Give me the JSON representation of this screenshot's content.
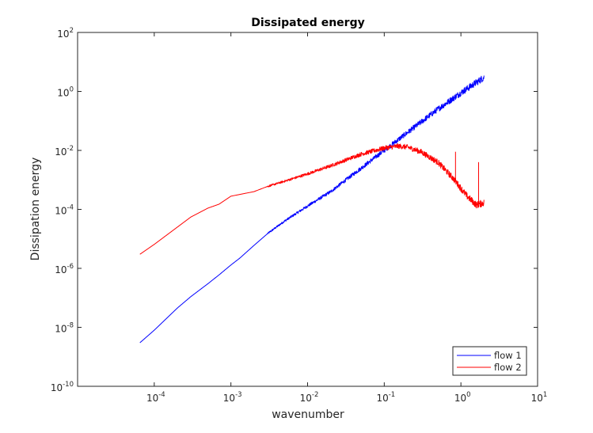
{
  "chart_data": {
    "type": "line",
    "title": "Dissipated energy",
    "xlabel": "wavenumber",
    "ylabel": "Dissipation energy",
    "xscale": "log",
    "yscale": "log",
    "xlim": [
      1e-05,
      10
    ],
    "ylim": [
      1e-10,
      100
    ],
    "x_ticks": [
      {
        "base": "10",
        "exp": "-4",
        "value": 0.0001
      },
      {
        "base": "10",
        "exp": "-3",
        "value": 0.001
      },
      {
        "base": "10",
        "exp": "-2",
        "value": 0.01
      },
      {
        "base": "10",
        "exp": "-1",
        "value": 0.1
      },
      {
        "base": "10",
        "exp": "0",
        "value": 1
      },
      {
        "base": "10",
        "exp": "1",
        "value": 10
      }
    ],
    "y_ticks": [
      {
        "base": "10",
        "exp": "-10",
        "value": 1e-10
      },
      {
        "base": "10",
        "exp": "-8",
        "value": 1e-08
      },
      {
        "base": "10",
        "exp": "-6",
        "value": 1e-06
      },
      {
        "base": "10",
        "exp": "-4",
        "value": 0.0001
      },
      {
        "base": "10",
        "exp": "-2",
        "value": 0.01
      },
      {
        "base": "10",
        "exp": "0",
        "value": 1
      },
      {
        "base": "10",
        "exp": "2",
        "value": 100
      }
    ],
    "grid": false,
    "box": true,
    "legend_position": "bottom-right",
    "series": [
      {
        "name": "flow 1",
        "color": "#0000ff",
        "noisy_from_x": 0.003,
        "points": [
          [
            6.5e-05,
            3e-09
          ],
          [
            0.0001,
            8e-09
          ],
          [
            0.0002,
            4.5e-08
          ],
          [
            0.0003,
            1.1e-07
          ],
          [
            0.0005,
            3e-07
          ],
          [
            0.0007,
            6e-07
          ],
          [
            0.001,
            1.3e-06
          ],
          [
            0.0013,
            2.2e-06
          ],
          [
            0.002,
            6e-06
          ],
          [
            0.003,
            1.5e-05
          ],
          [
            0.005,
            4e-05
          ],
          [
            0.01,
            0.00013
          ],
          [
            0.02,
            0.0004
          ],
          [
            0.05,
            0.0025
          ],
          [
            0.1,
            0.01
          ],
          [
            0.2,
            0.04
          ],
          [
            0.5,
            0.25
          ],
          [
            1,
            0.9
          ],
          [
            2,
            3
          ]
        ]
      },
      {
        "name": "flow 2",
        "color": "#ff0000",
        "noisy_from_x": 0.003,
        "points": [
          [
            6.5e-05,
            3e-06
          ],
          [
            0.0001,
            6.5e-06
          ],
          [
            0.0002,
            2.5e-05
          ],
          [
            0.0003,
            5.5e-05
          ],
          [
            0.0005,
            0.00011
          ],
          [
            0.0007,
            0.00015
          ],
          [
            0.001,
            0.00028
          ],
          [
            0.002,
            0.0004
          ],
          [
            0.003,
            0.0006
          ],
          [
            0.005,
            0.0009
          ],
          [
            0.01,
            0.0016
          ],
          [
            0.02,
            0.003
          ],
          [
            0.05,
            0.0075
          ],
          [
            0.1,
            0.012
          ],
          [
            0.15,
            0.014
          ],
          [
            0.2,
            0.013
          ],
          [
            0.3,
            0.009
          ],
          [
            0.5,
            0.004
          ],
          [
            0.8,
            0.0011
          ],
          [
            1.2,
            0.00028
          ],
          [
            1.6,
            0.00014
          ],
          [
            2,
            0.00017
          ]
        ],
        "spikes": [
          {
            "x": 0.85,
            "peak": 0.009
          },
          {
            "x": 1.7,
            "peak": 0.004
          }
        ]
      }
    ]
  }
}
